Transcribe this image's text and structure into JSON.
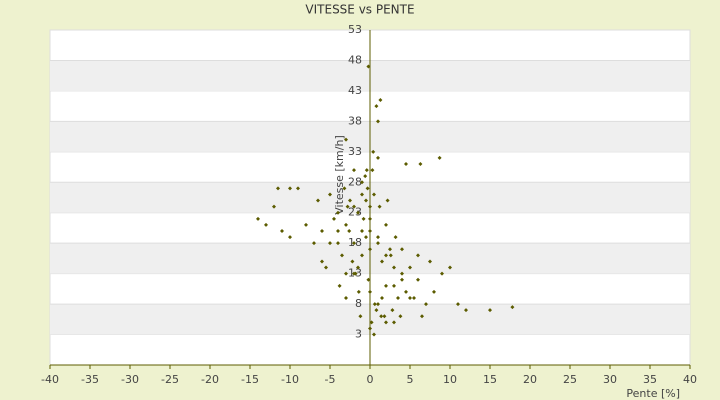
{
  "chart_data": {
    "type": "scatter",
    "title": "VITESSE vs PENTE",
    "x_label": "Pente [%]",
    "y_label": "Vitesse [km/h]",
    "color": "#5c5c00",
    "band_color": "#efefef",
    "grid": true,
    "xlim": [
      -40,
      40
    ],
    "xticks": [
      -40,
      -35,
      -30,
      -25,
      -20,
      -15,
      -10,
      -5,
      0,
      5,
      10,
      15,
      20,
      25,
      30,
      35,
      40
    ],
    "ylim": [
      -2,
      53
    ],
    "yticks": [
      3,
      8,
      13,
      18,
      23,
      28,
      33,
      38,
      43,
      48,
      53
    ],
    "x": [
      -1,
      0,
      1,
      2,
      -2,
      3,
      -3,
      0.5,
      -0.5,
      1.5,
      -1.5,
      4,
      -4,
      2.5,
      -2.5,
      0,
      1,
      -1,
      2,
      -2,
      0.3,
      -0.3,
      5,
      -5,
      3.5,
      -3.5,
      0.8,
      -0.8,
      1.2,
      -1.2,
      6,
      -6,
      4.5,
      -4.5,
      2.2,
      -2.2,
      0,
      0.6,
      -0.6,
      1.8,
      -1.8,
      3.2,
      -3.2,
      7,
      -7,
      5.5,
      -5.5,
      0.2,
      -0.2,
      2.8,
      -2.8,
      1,
      -1,
      0,
      4,
      -4,
      3,
      -3,
      2,
      -2,
      8,
      -8,
      6.5,
      -6.5,
      -9,
      -10,
      9,
      10,
      0.4,
      -0.4,
      1.4,
      -1.4,
      2.6,
      -2.6,
      3.8,
      -3.8,
      0,
      1,
      -1,
      5,
      -5,
      -11,
      -12,
      -14,
      -13,
      11,
      12,
      15,
      17.8,
      8.7,
      6.3,
      1.3,
      0.8,
      -0.2,
      -3,
      1,
      4.5,
      7.5,
      -10,
      -11.5,
      2,
      -2,
      0.5,
      -0.5,
      3,
      -3,
      0,
      1.5,
      -1.5,
      6,
      -6,
      4,
      -4
    ],
    "values": [
      20,
      22,
      18,
      16,
      24,
      14,
      21,
      26,
      19,
      15,
      23,
      12,
      20,
      17,
      25,
      10,
      8,
      28,
      11,
      13,
      30,
      27,
      14,
      18,
      9,
      16,
      7,
      22,
      24,
      6,
      12,
      20,
      10,
      22,
      25,
      15,
      17,
      8,
      29,
      6,
      13,
      19,
      27,
      8,
      18,
      9,
      14,
      5,
      12,
      7,
      24,
      32,
      26,
      4,
      17,
      23,
      11,
      13,
      21,
      18,
      10,
      21,
      6,
      25,
      27,
      19,
      13,
      14,
      33,
      30,
      6,
      10,
      16,
      20,
      6,
      11,
      24,
      19,
      16,
      9,
      26,
      20,
      24,
      22,
      21,
      8,
      7,
      7,
      7.5,
      32,
      31,
      41.5,
      40.5,
      47,
      35,
      38,
      31,
      15,
      27,
      27,
      5,
      30,
      3,
      25,
      5,
      9,
      20,
      9,
      14,
      16,
      15,
      13,
      18
    ]
  }
}
